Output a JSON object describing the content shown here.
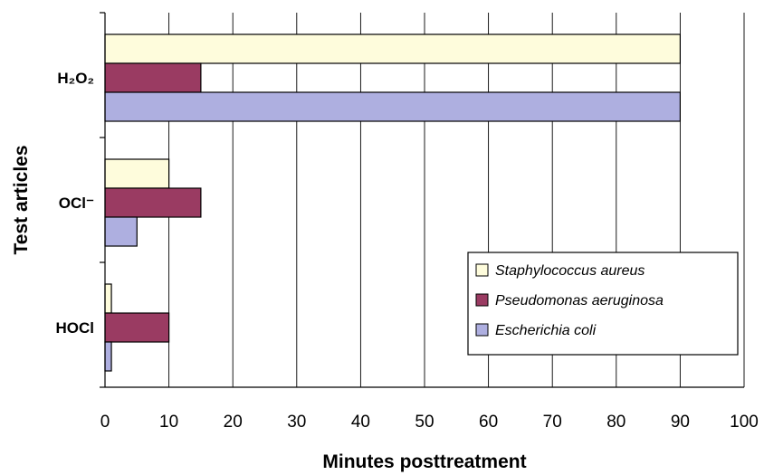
{
  "chart_data": {
    "type": "bar",
    "orientation": "horizontal",
    "categories": [
      "H₂O₂",
      "OCl⁻",
      "HOCl"
    ],
    "series": [
      {
        "name": "Staphylococcus aureus",
        "values": [
          90,
          10,
          1
        ],
        "color": "#fefcdc"
      },
      {
        "name": "Pseudomonas aeruginosa",
        "values": [
          15,
          15,
          10
        ],
        "color": "#9a3b62"
      },
      {
        "name": "Escherichia coli",
        "values": [
          90,
          5,
          1
        ],
        "color": "#aeafe0"
      }
    ],
    "xlabel": "Minutes posttreatment",
    "ylabel": "Test articles",
    "xlim": [
      0,
      100
    ],
    "xticks": [
      0,
      10,
      20,
      30,
      40,
      50,
      60,
      70,
      80,
      90,
      100
    ],
    "grid": "vertical",
    "legend_position": "lower-right"
  }
}
